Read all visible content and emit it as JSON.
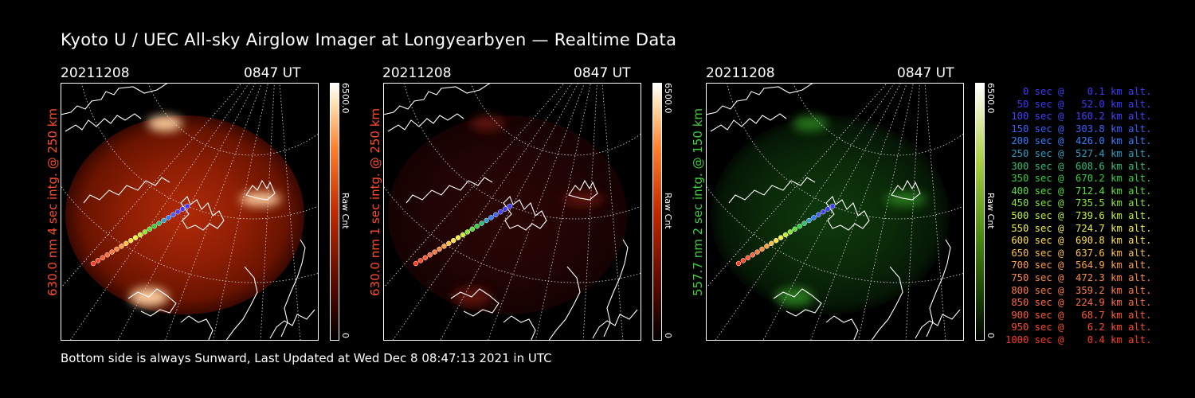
{
  "title": "Kyoto U / UEC All-sky Airglow Imager at Longyearbyen — Realtime Data",
  "footer": "Bottom side is always Sunward, Last Updated at Wed Dec  8 08:47:13 2021 in UTC",
  "panels": [
    {
      "date": "20211208",
      "time": "0847 UT",
      "side_label": "630.0 nm 4 sec intg. @ 250 km",
      "label_color": "#ff4a2a",
      "cbar_max": "6500.0",
      "cbar_min": "0",
      "cbar_unit": "Raw Cnt",
      "tint": "red",
      "brightness": "high"
    },
    {
      "date": "20211208",
      "time": "0847 UT",
      "side_label": "630.0 nm 1 sec intg. @ 250 km",
      "label_color": "#ff4a2a",
      "cbar_max": "6500.0",
      "cbar_min": "0",
      "cbar_unit": "Raw Cnt",
      "tint": "red",
      "brightness": "low"
    },
    {
      "date": "20211208",
      "time": "0847 UT",
      "side_label": "557.7 nm 2 sec intg. @ 150 km",
      "label_color": "#3ccf3c",
      "cbar_max": "6500.0",
      "cbar_min": "0",
      "cbar_unit": "Raw Cnt",
      "tint": "green",
      "brightness": "low"
    }
  ],
  "legend": [
    {
      "text": "   0 sec @    0.1 km alt.",
      "color": "#3b3bff"
    },
    {
      "text": "  50 sec @   52.0 km alt.",
      "color": "#3b3bff"
    },
    {
      "text": " 100 sec @  160.2 km alt.",
      "color": "#4141ff"
    },
    {
      "text": " 150 sec @  303.8 km alt.",
      "color": "#3f5fff"
    },
    {
      "text": " 200 sec @  426.0 km alt.",
      "color": "#2f7fff"
    },
    {
      "text": " 250 sec @  527.4 km alt.",
      "color": "#2aa0c8"
    },
    {
      "text": " 300 sec @  608.6 km alt.",
      "color": "#2fc07a"
    },
    {
      "text": " 350 sec @  670.2 km alt.",
      "color": "#30d040"
    },
    {
      "text": " 400 sec @  712.4 km alt.",
      "color": "#58e030"
    },
    {
      "text": " 450 sec @  735.5 km alt.",
      "color": "#88e830"
    },
    {
      "text": " 500 sec @  739.6 km alt.",
      "color": "#c0f030"
    },
    {
      "text": " 550 sec @  724.7 km alt.",
      "color": "#f0f040"
    },
    {
      "text": " 600 sec @  690.8 km alt.",
      "color": "#ffe040"
    },
    {
      "text": " 650 sec @  637.6 km alt.",
      "color": "#ffc040"
    },
    {
      "text": " 700 sec @  564.9 km alt.",
      "color": "#ffa040"
    },
    {
      "text": " 750 sec @  472.3 km alt.",
      "color": "#ff8a40"
    },
    {
      "text": " 800 sec @  359.2 km alt.",
      "color": "#ff7a40"
    },
    {
      "text": " 850 sec @  224.9 km alt.",
      "color": "#ff6a40"
    },
    {
      "text": " 900 sec @   68.7 km alt.",
      "color": "#ff5a30"
    },
    {
      "text": " 950 sec @    6.2 km alt.",
      "color": "#ff4a28"
    },
    {
      "text": "1000 sec @    0.4 km alt.",
      "color": "#ff3a20"
    }
  ]
}
